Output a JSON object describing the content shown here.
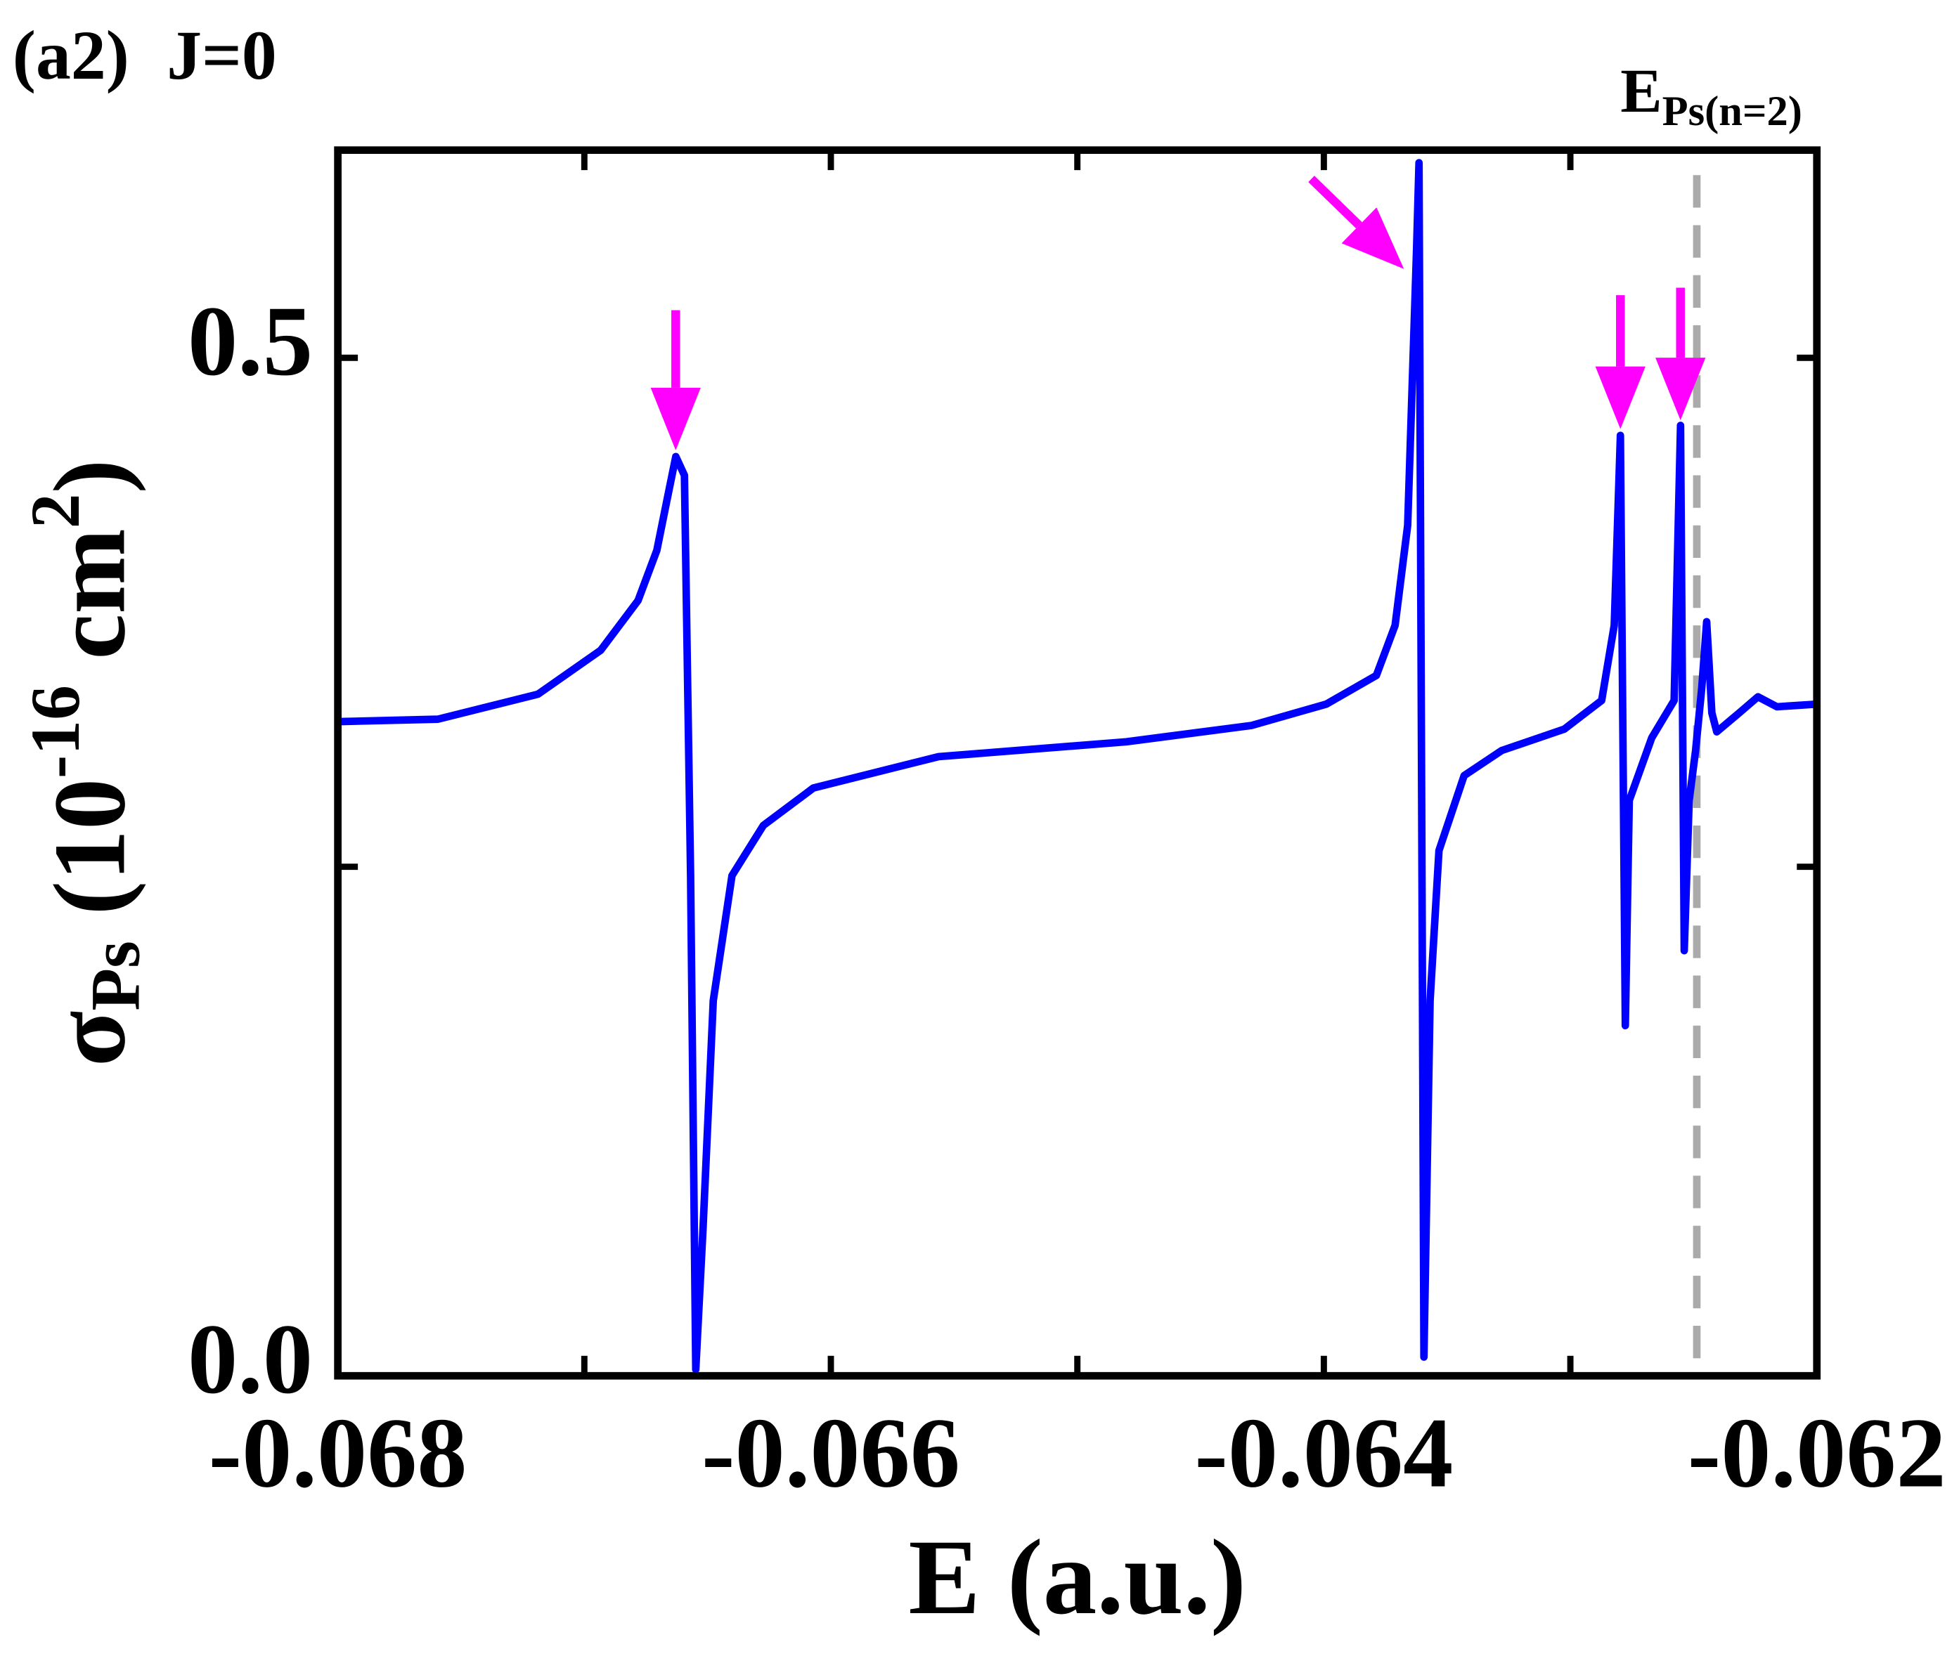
{
  "chart_data": {
    "type": "line",
    "title_parts": [
      "(a2)",
      "J=0"
    ],
    "xlabel": "E (a.u.)",
    "ylabel_parts": [
      "σ",
      "Ps",
      " (10",
      "-16",
      " cm",
      "2",
      ")"
    ],
    "xlim": [
      -0.068,
      -0.062
    ],
    "xticks": [
      -0.068,
      -0.066,
      -0.064,
      -0.062
    ],
    "xminor_ticks": [
      -0.067,
      -0.065,
      -0.063
    ],
    "ylim": [
      0,
      0.602
    ],
    "yticks": [
      {
        "value": 0,
        "label": "0.0"
      },
      {
        "value": 0.5,
        "label": "0.5"
      }
    ],
    "yminor_ticks": [
      0.25
    ],
    "vline": {
      "x": -0.062487,
      "label_parts": [
        "E",
        "Ps(n=2)"
      ],
      "color": "#aaaaaa"
    },
    "series": [
      {
        "name": "σPs",
        "color": "#0000ff",
        "x": [
          -0.068,
          -0.067594,
          -0.067188,
          -0.066934,
          -0.066782,
          -0.066706,
          -0.066665,
          -0.066629,
          -0.066594,
          -0.066569,
          -0.066548,
          -0.066518,
          -0.066477,
          -0.066401,
          -0.066274,
          -0.066071,
          -0.065563,
          -0.064802,
          -0.064294,
          -0.06399,
          -0.063787,
          -0.063711,
          -0.06366,
          -0.063624,
          -0.063614,
          -0.063604,
          -0.063594,
          -0.063569,
          -0.063533,
          -0.063431,
          -0.063279,
          -0.063025,
          -0.062873,
          -0.062822,
          -0.062797,
          -0.062777,
          -0.062761,
          -0.06267,
          -0.062579,
          -0.062553,
          -0.062538,
          -0.062518,
          -0.062492,
          -0.062467,
          -0.062447,
          -0.062426,
          -0.062406,
          -0.062315,
          -0.062239,
          -0.062162,
          -0.062
        ],
        "values": [
          0.3213,
          0.3225,
          0.3348,
          0.3563,
          0.3808,
          0.4054,
          0.43,
          0.4515,
          0.4423,
          0.2457,
          0.0031,
          0.0737,
          0.1843,
          0.2457,
          0.2703,
          0.2887,
          0.3041,
          0.3114,
          0.3194,
          0.3299,
          0.344,
          0.3686,
          0.4177,
          0.5528,
          0.5958,
          0.3071,
          0.0092,
          0.1843,
          0.258,
          0.2948,
          0.3071,
          0.3176,
          0.3317,
          0.3686,
          0.4619,
          0.172,
          0.2826,
          0.3133,
          0.3317,
          0.4668,
          0.2088,
          0.2826,
          0.3071,
          0.3378,
          0.3704,
          0.3256,
          0.3163,
          0.3256,
          0.3335,
          0.3286,
          0.3299
        ]
      }
    ],
    "arrow_color": "#ff00ff"
  }
}
